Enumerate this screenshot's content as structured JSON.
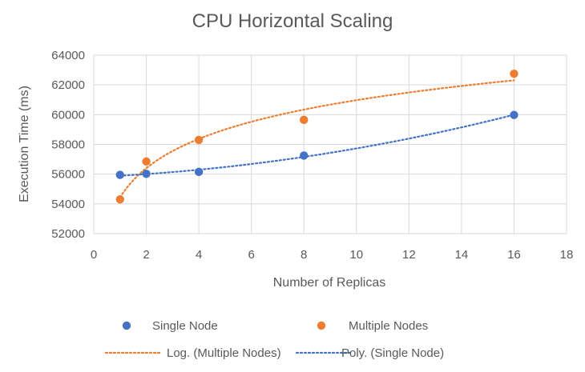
{
  "chart_data": {
    "type": "scatter",
    "title": "CPU Horizontal Scaling",
    "xlabel": "Number of Replicas",
    "ylabel": "Execution Time (ms)",
    "xlim": [
      0,
      18
    ],
    "ylim": [
      52000,
      64000
    ],
    "x_ticks": [
      0,
      2,
      4,
      6,
      8,
      10,
      12,
      14,
      16,
      18
    ],
    "y_ticks": [
      52000,
      54000,
      56000,
      58000,
      60000,
      62000,
      64000
    ],
    "x_tick_labels": [
      "0",
      "2",
      "4",
      "6",
      "8",
      "10",
      "12",
      "14",
      "16",
      "18"
    ],
    "y_tick_labels": [
      "52000",
      "54000",
      "56000",
      "58000",
      "60000",
      "62000",
      "64000"
    ],
    "grid": true,
    "legend_position": "bottom",
    "series": [
      {
        "name": "Single Node",
        "type": "scatter",
        "color": "#4472C4",
        "points": [
          {
            "x": 1,
            "y": 55950
          },
          {
            "x": 2,
            "y": 56020
          },
          {
            "x": 4,
            "y": 56150
          },
          {
            "x": 8,
            "y": 57250
          },
          {
            "x": 16,
            "y": 59980
          }
        ]
      },
      {
        "name": "Multiple Nodes",
        "type": "scatter",
        "color": "#ED7D31",
        "points": [
          {
            "x": 1,
            "y": 54300
          },
          {
            "x": 2,
            "y": 56850
          },
          {
            "x": 4,
            "y": 58300
          },
          {
            "x": 8,
            "y": 59650
          },
          {
            "x": 16,
            "y": 62750
          }
        ]
      }
    ],
    "trendlines": [
      {
        "name": "Log. (Multiple Nodes)",
        "type": "log",
        "color": "#ED7D31",
        "source_series": "Multiple Nodes"
      },
      {
        "name": "Poly. (Single Node)",
        "type": "poly",
        "color": "#4472C4",
        "source_series": "Single Node"
      }
    ],
    "legend": {
      "entries": [
        {
          "label": "Single Node",
          "type": "marker",
          "color": "#4472C4"
        },
        {
          "label": "Multiple Nodes",
          "type": "marker",
          "color": "#ED7D31"
        },
        {
          "label": "Log. (Multiple Nodes)",
          "type": "dotted-line",
          "color": "#ED7D31"
        },
        {
          "label": "Poly. (Single Node)",
          "type": "dotted-line",
          "color": "#4472C4"
        }
      ]
    }
  }
}
